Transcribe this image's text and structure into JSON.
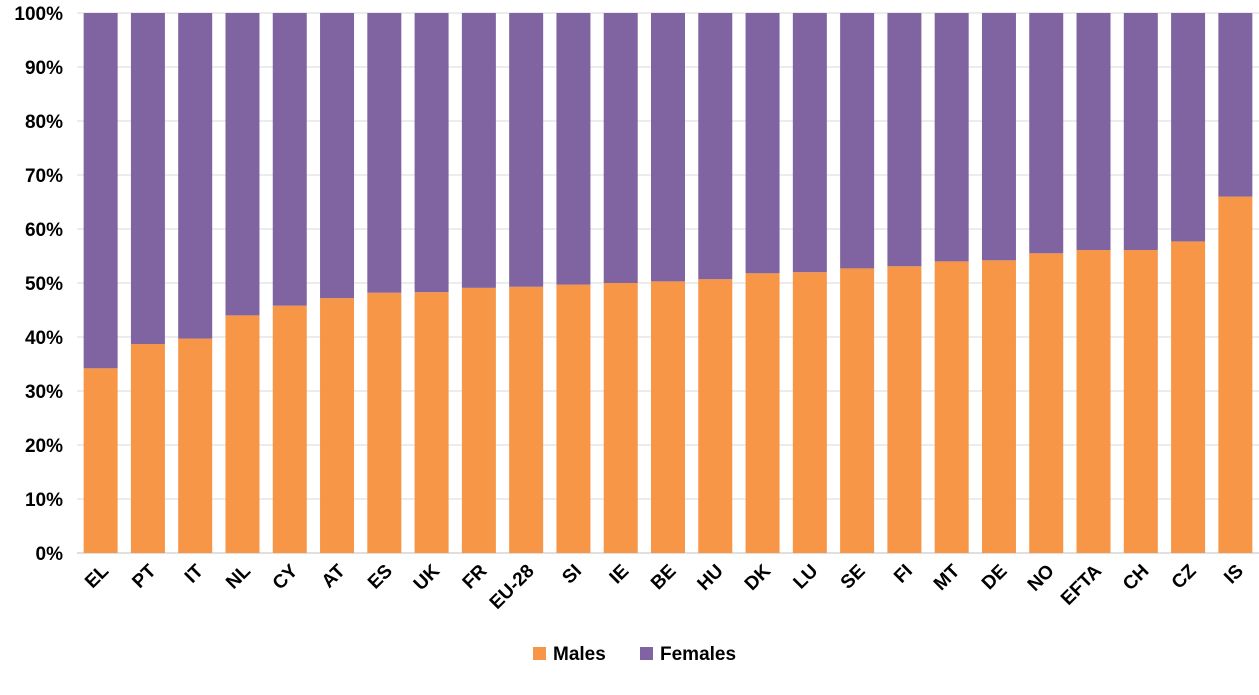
{
  "chart_data": {
    "type": "bar",
    "stacked": true,
    "categories": [
      "EL",
      "PT",
      "IT",
      "NL",
      "CY",
      "AT",
      "ES",
      "UK",
      "FR",
      "EU-28",
      "SI",
      "IE",
      "BE",
      "HU",
      "DK",
      "LU",
      "SE",
      "FI",
      "MT",
      "DE",
      "NO",
      "EFTA",
      "CH",
      "CZ",
      "IS"
    ],
    "series": [
      {
        "name": "Males",
        "color": "#F79646",
        "values": [
          34.2,
          38.7,
          39.7,
          44.0,
          45.8,
          47.2,
          48.2,
          48.3,
          49.1,
          49.3,
          49.7,
          50.0,
          50.3,
          50.7,
          51.8,
          52.0,
          52.7,
          53.1,
          54.0,
          54.2,
          55.5,
          56.1,
          56.1,
          57.7,
          66.0
        ]
      },
      {
        "name": "Females",
        "color": "#8064A2",
        "values": [
          65.8,
          61.3,
          60.3,
          56.0,
          54.2,
          52.8,
          51.8,
          51.7,
          50.9,
          50.7,
          50.3,
          50.0,
          49.7,
          49.3,
          48.2,
          48.0,
          47.3,
          46.9,
          46.0,
          45.8,
          44.5,
          43.9,
          43.9,
          42.3,
          34.0
        ]
      }
    ],
    "yticks": [
      "0%",
      "10%",
      "20%",
      "30%",
      "40%",
      "50%",
      "60%",
      "70%",
      "80%",
      "90%",
      "100%"
    ],
    "ylim": [
      0,
      100
    ],
    "grid": true,
    "legend_position": "bottom",
    "title": "",
    "xlabel": "",
    "ylabel": ""
  }
}
